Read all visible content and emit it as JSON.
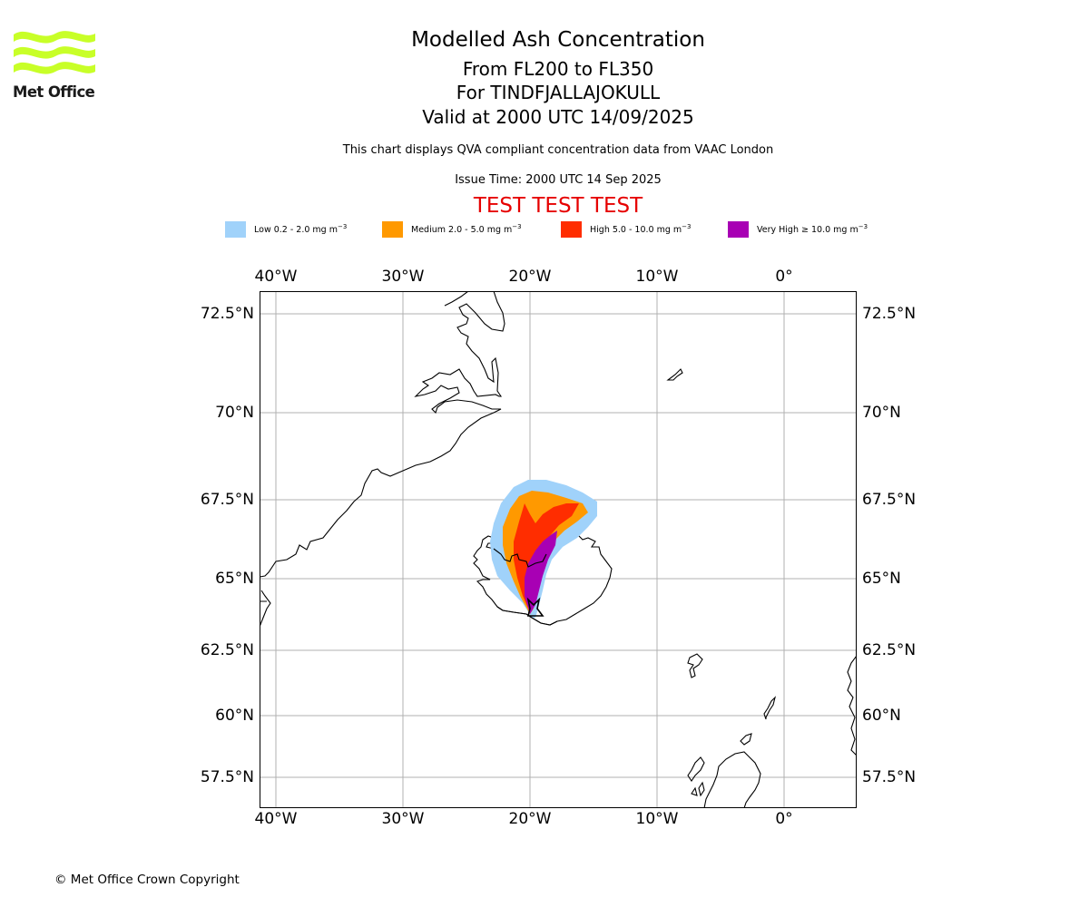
{
  "logo": {
    "text": "Met Office",
    "color": "#c8ff28"
  },
  "header": {
    "title": "Modelled Ash Concentration",
    "flight_levels": "From FL200 to FL350",
    "volcano": "For TINDFJALLAJOKULL",
    "valid": "Valid at 2000 UTC 14/09/2025",
    "disclaimer": "This chart displays QVA compliant concentration data from VAAC London",
    "issue_time": "Issue Time: 2000 UTC 14 Sep 2025",
    "test_banner": "TEST TEST TEST",
    "test_color": "#e60000"
  },
  "legend": [
    {
      "label": "Low 0.2 - 2.0 mg m",
      "unit_exp": "−3",
      "color": "#a0d2fa"
    },
    {
      "label": "Medium 2.0 - 5.0 mg m",
      "unit_exp": "−3",
      "color": "#ff9900"
    },
    {
      "label": "High 5.0 - 10.0 mg m",
      "unit_exp": "−3",
      "color": "#ff2d00"
    },
    {
      "label": "Very High ≥ 10.0 mg m",
      "unit_exp": "−3",
      "color": "#a800b4"
    }
  ],
  "map": {
    "lon_range": [
      -41.2,
      5.8
    ],
    "lat_range": [
      56.5,
      73.5
    ],
    "lon_ticks": [
      "40°W",
      "30°W",
      "20°W",
      "10°W",
      "0°"
    ],
    "lon_tick_values": [
      -40,
      -30,
      -20,
      -10,
      0
    ],
    "lat_ticks": [
      "72.5°N",
      "70°N",
      "67.5°N",
      "65°N",
      "62.5°N",
      "60°N",
      "57.5°N"
    ],
    "lat_tick_values": [
      72.5,
      70,
      67.5,
      65,
      62.5,
      60,
      57.5
    ],
    "grid": true,
    "volcano_marker": {
      "lat": 63.9,
      "lon": -19.6
    }
  },
  "footer": {
    "copyright": "© Met Office Crown Copyright"
  }
}
